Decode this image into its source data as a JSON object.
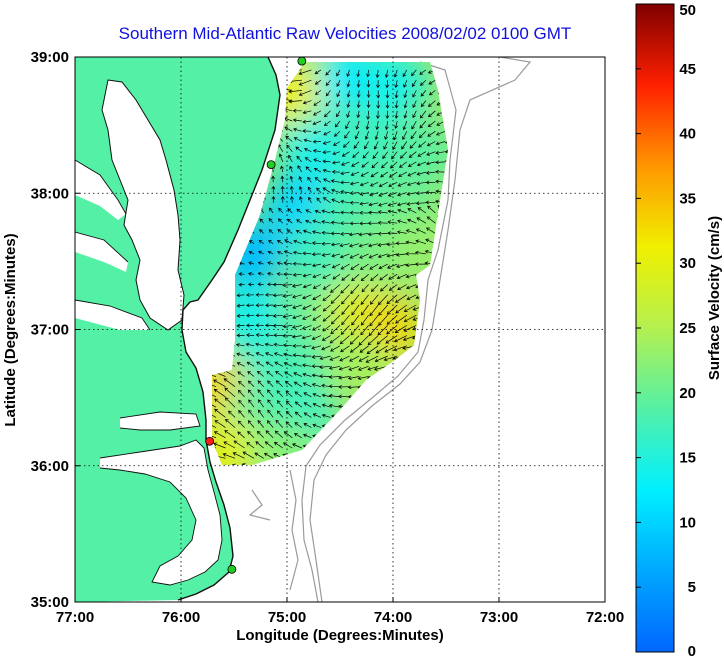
{
  "title": "Southern Mid-Atlantic Raw Velocities 2008/02/02 0100 GMT",
  "x_axis": {
    "label": "Longitude (Degrees:Minutes)",
    "ticks": [
      {
        "value": -77,
        "label": "77:00"
      },
      {
        "value": -76,
        "label": "76:00"
      },
      {
        "value": -75,
        "label": "75:00"
      },
      {
        "value": -74,
        "label": "74:00"
      },
      {
        "value": -73,
        "label": "73:00"
      },
      {
        "value": -72,
        "label": "72:00"
      }
    ],
    "range": [
      -77,
      -72
    ]
  },
  "y_axis": {
    "label": "Latitude (Degrees:Minutes)",
    "ticks": [
      {
        "value": 39,
        "label": "39:00"
      },
      {
        "value": 38,
        "label": "38:00"
      },
      {
        "value": 37,
        "label": "37:00"
      },
      {
        "value": 36,
        "label": "36:00"
      },
      {
        "value": 35,
        "label": "35:00"
      }
    ],
    "range": [
      35,
      39
    ]
  },
  "colorbar": {
    "label": "Surface Velocity (cm/s)",
    "ticks": [
      "0",
      "5",
      "10",
      "15",
      "20",
      "25",
      "30",
      "35",
      "40",
      "45",
      "50"
    ],
    "range": [
      0,
      50
    ],
    "colormap": "jet"
  },
  "colors": {
    "land": "#54f0a6",
    "water": "#ffffff",
    "coastline": "#111111",
    "bathymetry": "#9a9a9a",
    "grid": "#000000",
    "title": "#1010e0",
    "site_active": "#22cc22",
    "site_inactive": "#ff1a1a"
  },
  "stations": [
    {
      "lon": -74.86,
      "lat": 38.97,
      "status": "active"
    },
    {
      "lon": -75.15,
      "lat": 38.21,
      "status": "active"
    },
    {
      "lon": -75.73,
      "lat": 36.18,
      "status": "inactive"
    },
    {
      "lon": -75.52,
      "lat": 35.24,
      "status": "active"
    }
  ],
  "chart_data": {
    "type": "heatmap",
    "title": "Southern Mid-Atlantic Raw Velocities 2008/02/02 0100 GMT",
    "xlabel": "Longitude (Degrees:Minutes)",
    "ylabel": "Latitude (Degrees:Minutes)",
    "xlim": [
      -77,
      -72
    ],
    "ylim": [
      35,
      39
    ],
    "grid": true,
    "value_label": "Surface Velocity (cm/s)",
    "value_range": [
      0,
      50
    ],
    "surface_velocity_regions": [
      {
        "lon": -74.4,
        "lat": 38.85,
        "speed": 12
      },
      {
        "lon": -74.0,
        "lat": 38.8,
        "speed": 14
      },
      {
        "lon": -74.85,
        "lat": 38.5,
        "speed": 17
      },
      {
        "lon": -74.7,
        "lat": 38.3,
        "speed": 14
      },
      {
        "lon": -74.2,
        "lat": 38.35,
        "speed": 17
      },
      {
        "lon": -73.75,
        "lat": 38.3,
        "speed": 19
      },
      {
        "lon": -75.0,
        "lat": 38.75,
        "speed": 31
      },
      {
        "lon": -74.9,
        "lat": 37.9,
        "speed": 10
      },
      {
        "lon": -74.4,
        "lat": 37.9,
        "speed": 18
      },
      {
        "lon": -73.9,
        "lat": 37.85,
        "speed": 20
      },
      {
        "lon": -75.35,
        "lat": 37.55,
        "speed": 8
      },
      {
        "lon": -74.7,
        "lat": 37.55,
        "speed": 17
      },
      {
        "lon": -74.2,
        "lat": 37.55,
        "speed": 21
      },
      {
        "lon": -73.75,
        "lat": 37.6,
        "speed": 23
      },
      {
        "lon": -75.35,
        "lat": 37.1,
        "speed": 14
      },
      {
        "lon": -74.75,
        "lat": 37.1,
        "speed": 20
      },
      {
        "lon": -74.35,
        "lat": 37.1,
        "speed": 29
      },
      {
        "lon": -74.05,
        "lat": 37.0,
        "speed": 33
      },
      {
        "lon": -75.3,
        "lat": 36.7,
        "speed": 16
      },
      {
        "lon": -74.85,
        "lat": 36.7,
        "speed": 18
      },
      {
        "lon": -74.35,
        "lat": 36.75,
        "speed": 24
      },
      {
        "lon": -75.65,
        "lat": 36.55,
        "speed": 33
      },
      {
        "lon": -75.3,
        "lat": 36.35,
        "speed": 19
      },
      {
        "lon": -74.85,
        "lat": 36.35,
        "speed": 17
      },
      {
        "lon": -75.55,
        "lat": 36.1,
        "speed": 30
      },
      {
        "lon": -75.05,
        "lat": 36.1,
        "speed": 22
      }
    ]
  }
}
